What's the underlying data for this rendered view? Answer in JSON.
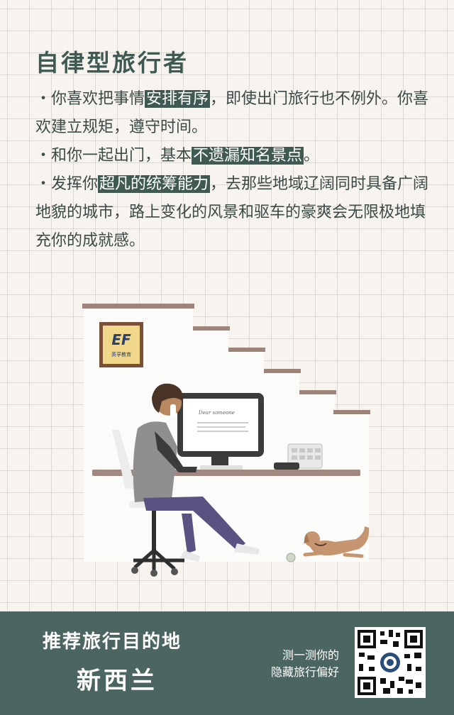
{
  "title": "自律型旅行者",
  "paragraphs": [
    {
      "pre": "・你喜欢把事情",
      "hl": "安排有序",
      "post": "，即使出门旅行也不例外。你喜欢建立规矩，遵守时间。"
    },
    {
      "pre": "・和你一起出门，基本",
      "hl": "不遗漏知名景点",
      "post": "。"
    },
    {
      "pre": "・发挥你",
      "hl": "超凡的统筹能力",
      "post": "，去那些地域辽阔同时具备广阔地貌的城市，路上变化的风景和驱车的豪爽会无限极地填充你的成就感。"
    }
  ],
  "illustration": {
    "frame_logo": "EF",
    "frame_caption": "英孚教育",
    "monitor_text": "Dear someone",
    "colors": {
      "shelf": "#9c8578",
      "frame": "#7a5038",
      "desk": "#a08a80",
      "shirt": "#8f8f8f",
      "pants": "#5a5280",
      "dog": "#c4956f"
    }
  },
  "footer": {
    "recommend_label": "推荐旅行目的地",
    "destination": "新西兰",
    "cta_line1": "测一测你的",
    "cta_line2": "隐藏旅行偏好",
    "qr_icon": "qr-code-icon"
  },
  "colors": {
    "accent": "#3f5a52",
    "footer_bg": "#4b6560",
    "text": "#3b4a45",
    "page_bg": "#f7f3ef"
  }
}
